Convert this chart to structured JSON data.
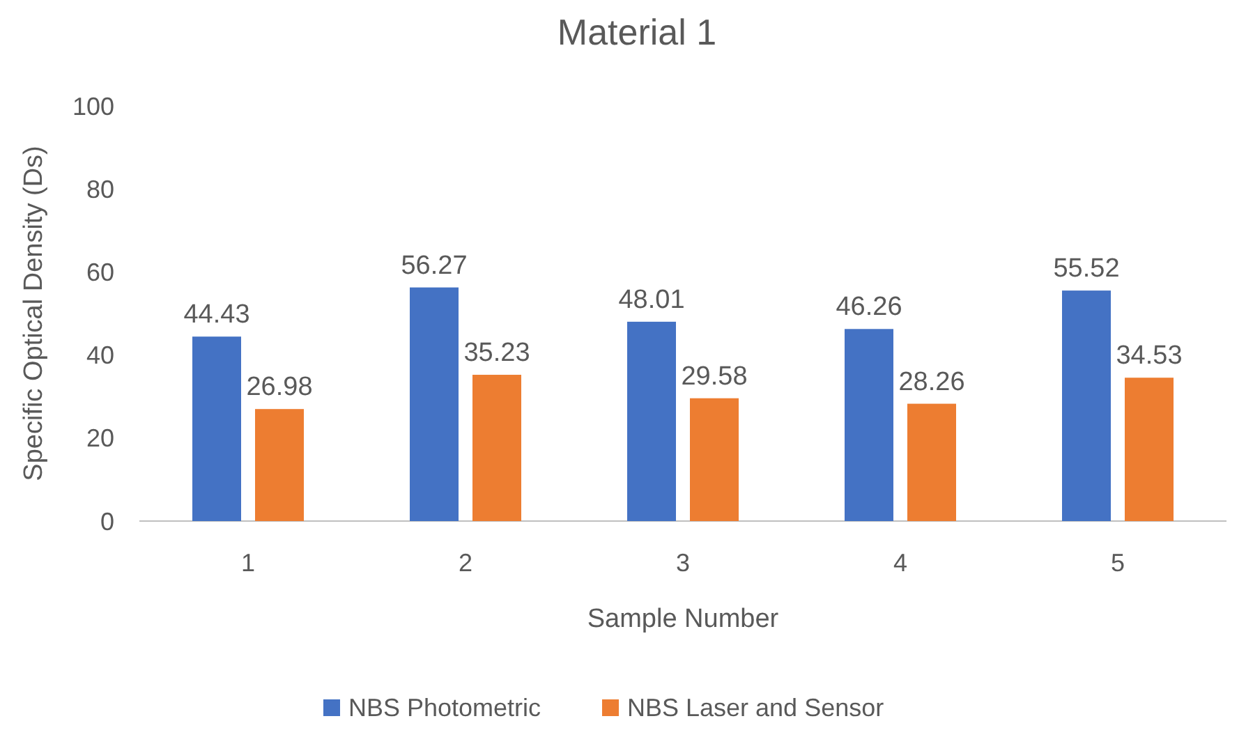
{
  "chart_data": {
    "type": "bar",
    "title": "Material 1",
    "xlabel": "Sample Number",
    "ylabel": "Specific Optical Density (Ds)",
    "categories": [
      "1",
      "2",
      "3",
      "4",
      "5"
    ],
    "series": [
      {
        "name": "NBS Photometric",
        "color": "#4472c4",
        "values": [
          44.43,
          56.27,
          48.01,
          46.26,
          55.52
        ]
      },
      {
        "name": "NBS Laser and Sensor",
        "color": "#ed7d31",
        "values": [
          26.98,
          35.23,
          29.58,
          28.26,
          34.53
        ]
      }
    ],
    "ylim": [
      0,
      100
    ],
    "yticks": [
      0,
      20,
      40,
      60,
      80,
      100
    ],
    "grid": false,
    "legend": "bottom",
    "data_labels": true
  }
}
